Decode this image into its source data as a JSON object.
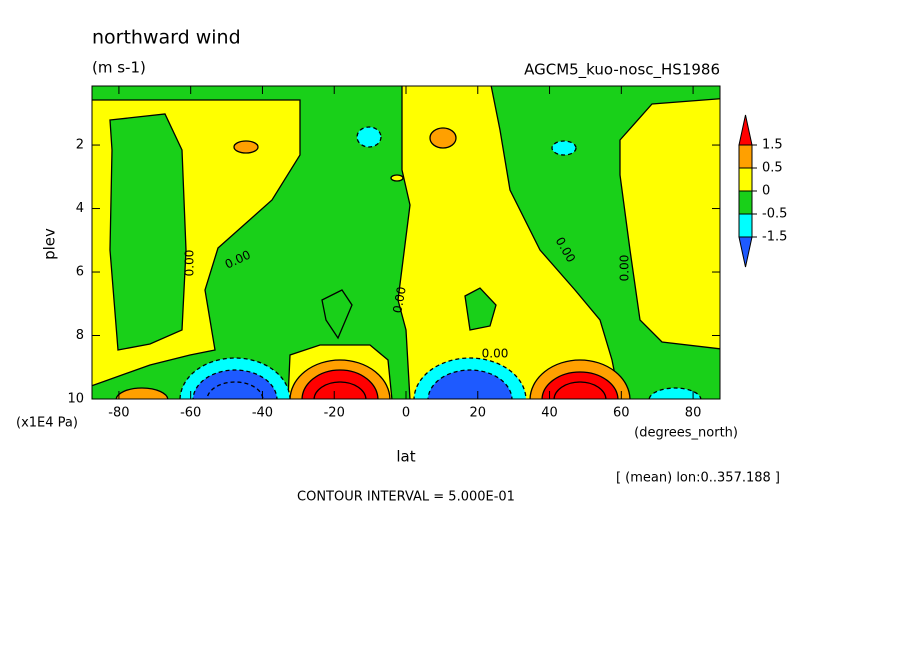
{
  "chart_data": {
    "type": "contour",
    "title": "northward wind",
    "units": "(m s-1)",
    "dataset": "AGCM5_kuo-nosc_HS1986",
    "x_label": "lat",
    "x_units": "(degrees_north)",
    "y_label": "plev",
    "y_units": "(x1E4 Pa)",
    "note": "[ (mean) lon:0..357.188 ]",
    "footer": "CONTOUR INTERVAL = 5.000E-01",
    "xlim": [
      -87.5,
      87.5
    ],
    "xticks": [
      -80,
      -60,
      -40,
      -20,
      0,
      20,
      40,
      60,
      80
    ],
    "ylim": [
      10,
      0.14
    ],
    "yticks": [
      2,
      4,
      6,
      8,
      10
    ],
    "levels": [
      -1.5,
      -0.5,
      0,
      0.5,
      1.5
    ],
    "colors": [
      "#1e5aff",
      "#00ffff",
      "#19d019",
      "#ffff00",
      "#ffa000",
      "#ff0000"
    ],
    "contour_labels": [
      "0.00",
      "0.00",
      "0.00",
      "0.00",
      "0.00",
      "0.00"
    ]
  }
}
